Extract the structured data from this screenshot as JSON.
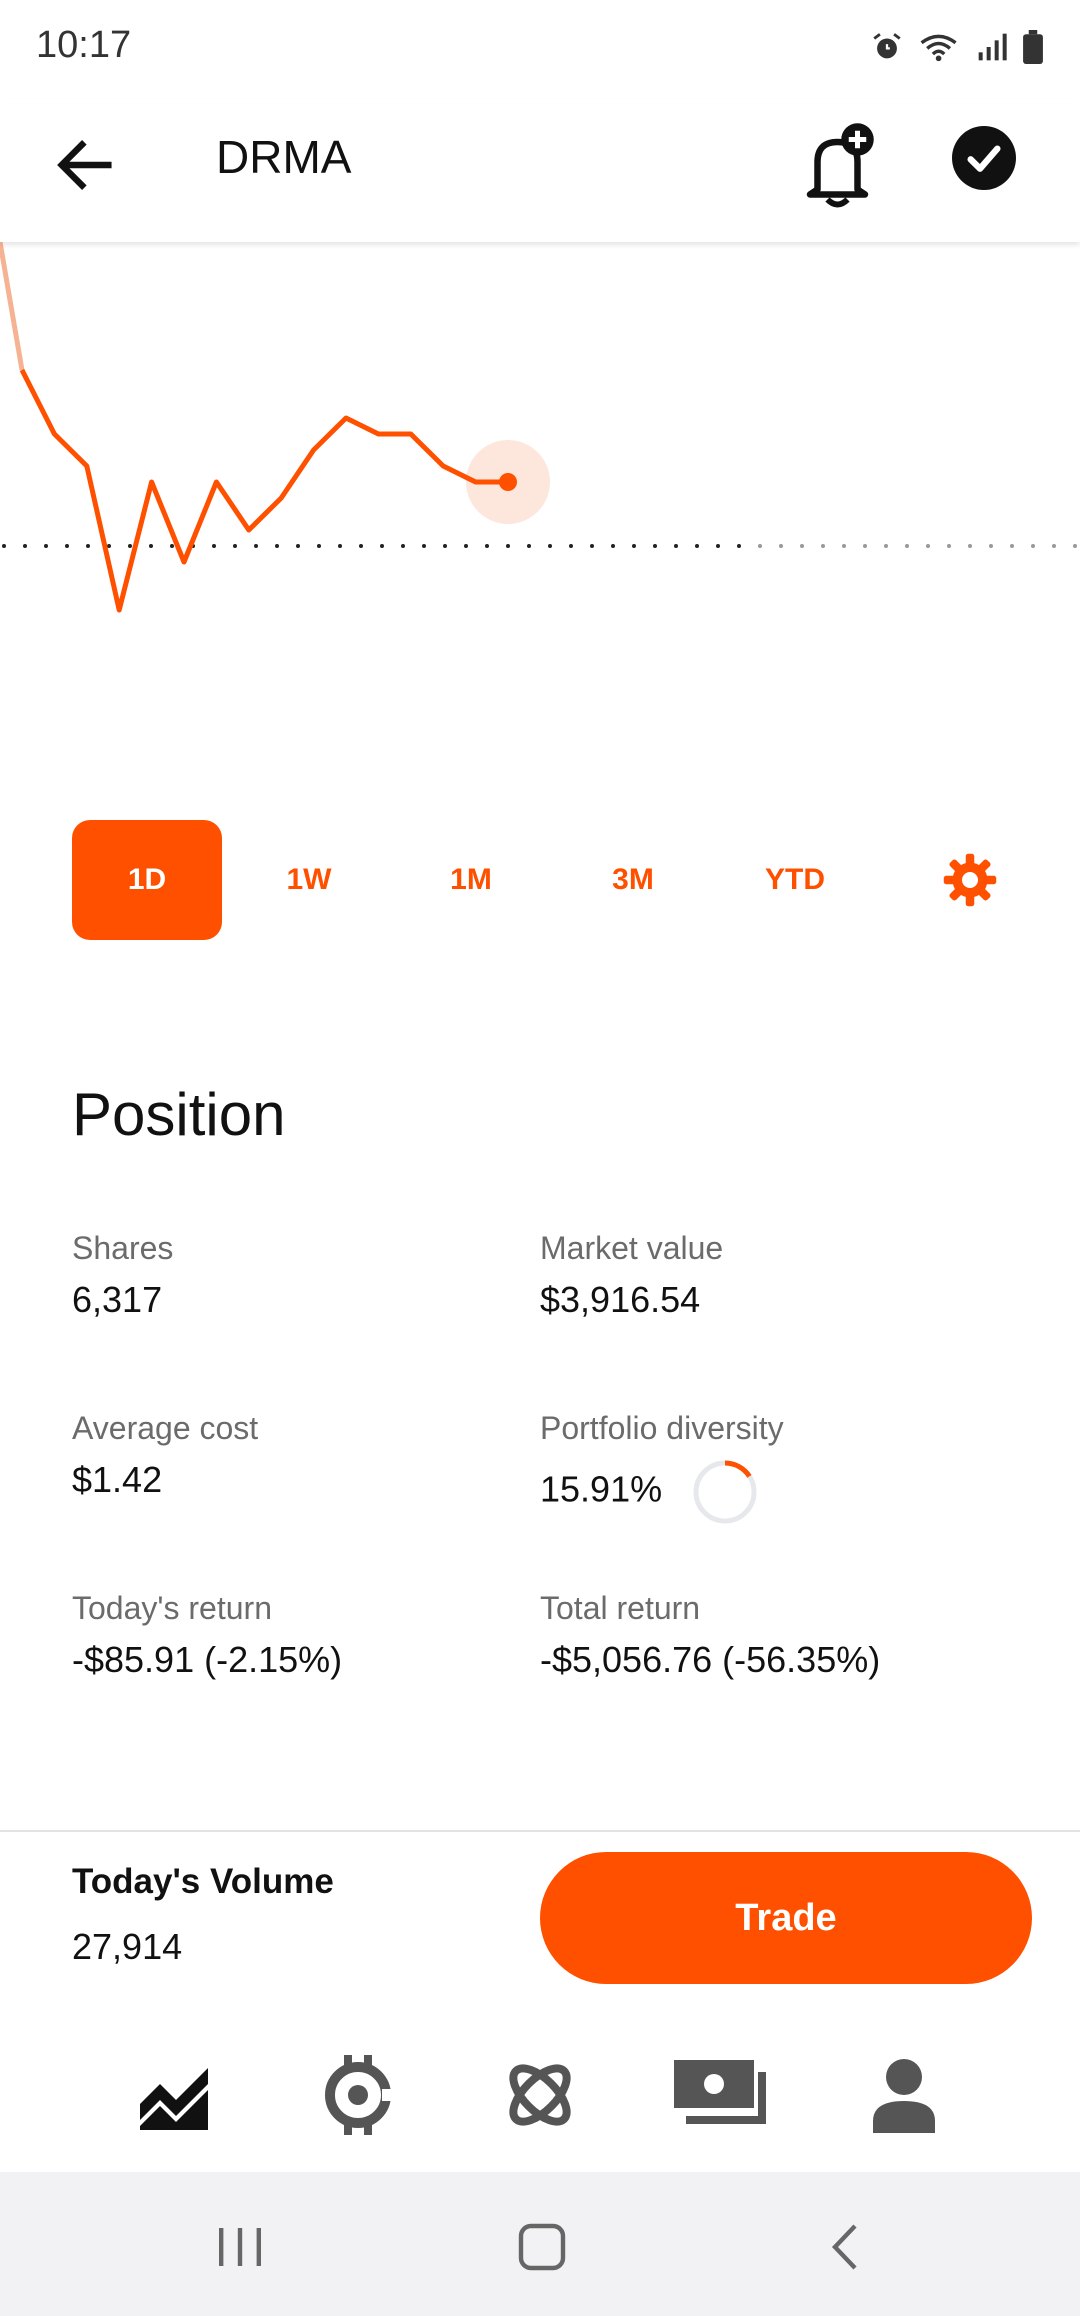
{
  "status_bar": {
    "time": "10:17"
  },
  "header": {
    "ticker": "DRMA"
  },
  "chart_data": {
    "type": "line",
    "y": [
      158,
      154,
      152,
      143,
      151,
      146,
      151,
      148,
      150,
      153,
      155,
      154,
      154,
      152,
      151,
      151
    ],
    "reference_line": 147,
    "ylim": [
      131,
      166
    ],
    "color": "#ff5000"
  },
  "ranges": [
    {
      "label": "1D",
      "active": true
    },
    {
      "label": "1W",
      "active": false
    },
    {
      "label": "1M",
      "active": false
    },
    {
      "label": "3M",
      "active": false
    },
    {
      "label": "YTD",
      "active": false
    }
  ],
  "position": {
    "title": "Position",
    "shares": {
      "label": "Shares",
      "value": "6,317"
    },
    "market_value": {
      "label": "Market value",
      "value": "$3,916.54"
    },
    "average_cost": {
      "label": "Average cost",
      "value": "$1.42"
    },
    "portfolio_diversity": {
      "label": "Portfolio diversity",
      "value": "15.91%",
      "fraction": 0.1591
    },
    "todays_return": {
      "label": "Today's return",
      "value": "-$85.91 (-2.15%)"
    },
    "total_return": {
      "label": "Total return",
      "value": "-$5,056.76 (-56.35%)"
    }
  },
  "volume": {
    "label": "Today's Volume",
    "value": "27,914"
  },
  "trade_button": {
    "label": "Trade"
  },
  "colors": {
    "accent": "#ff5000",
    "text": "#111111",
    "muted": "#6b6b6b"
  },
  "tabs": [
    {
      "icon": "investing-chart-icon",
      "active": true
    },
    {
      "icon": "crypto-icon",
      "active": false
    },
    {
      "icon": "discover-icon",
      "active": false
    },
    {
      "icon": "cash-icon",
      "active": false
    },
    {
      "icon": "account-icon",
      "active": false
    }
  ]
}
